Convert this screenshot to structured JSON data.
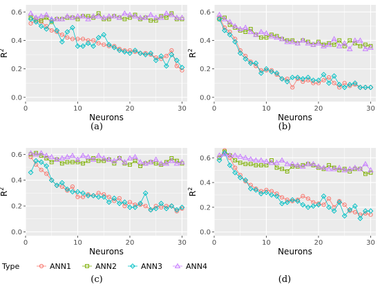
{
  "chart_data": [
    {
      "panel": "(a)",
      "type": "line",
      "xlabel": "Neurons",
      "ylabel": "R",
      "ylabel_superscript": "2",
      "xlim": [
        0,
        31
      ],
      "ylim": [
        -0.03,
        0.65
      ],
      "xticks": [
        0,
        10,
        20,
        30
      ],
      "yticks": [
        0.0,
        0.2,
        0.4,
        0.6
      ],
      "x": [
        1,
        2,
        3,
        4,
        5,
        6,
        7,
        8,
        9,
        10,
        11,
        12,
        13,
        14,
        15,
        16,
        17,
        18,
        19,
        20,
        21,
        22,
        23,
        24,
        25,
        26,
        27,
        28,
        29,
        30
      ],
      "series": [
        {
          "name": "ANN1",
          "values": [
            0.52,
            0.54,
            0.53,
            0.5,
            0.47,
            0.46,
            0.44,
            0.42,
            0.41,
            0.41,
            0.41,
            0.4,
            0.4,
            0.38,
            0.37,
            0.36,
            0.36,
            0.34,
            0.33,
            0.33,
            0.32,
            0.31,
            0.31,
            0.3,
            0.28,
            0.27,
            0.29,
            0.33,
            0.22,
            0.19
          ]
        },
        {
          "name": "ANN2",
          "values": [
            0.56,
            0.55,
            0.54,
            0.56,
            0.53,
            0.55,
            0.55,
            0.56,
            0.56,
            0.55,
            0.57,
            0.57,
            0.56,
            0.59,
            0.55,
            0.55,
            0.57,
            0.56,
            0.55,
            0.56,
            0.58,
            0.55,
            0.56,
            0.54,
            0.54,
            0.57,
            0.56,
            0.59,
            0.55,
            0.55
          ]
        },
        {
          "name": "ANN3",
          "values": [
            0.55,
            0.53,
            0.5,
            0.48,
            0.54,
            0.47,
            0.39,
            0.46,
            0.49,
            0.36,
            0.36,
            0.38,
            0.36,
            0.42,
            0.44,
            0.37,
            0.35,
            0.33,
            0.32,
            0.31,
            0.33,
            0.31,
            0.3,
            0.31,
            0.26,
            0.29,
            0.22,
            0.3,
            0.26,
            0.21
          ]
        },
        {
          "name": "ANN4",
          "values": [
            0.59,
            0.56,
            0.57,
            0.58,
            0.55,
            0.55,
            0.55,
            0.57,
            0.56,
            0.57,
            0.57,
            0.55,
            0.57,
            0.57,
            0.56,
            0.57,
            0.57,
            0.56,
            0.59,
            0.58,
            0.57,
            0.56,
            0.56,
            0.58,
            0.56,
            0.56,
            0.59,
            0.58,
            0.56,
            0.56
          ]
        }
      ]
    },
    {
      "panel": "(b)",
      "type": "line",
      "xlabel": "Neurons",
      "ylabel": "R",
      "ylabel_superscript": "2",
      "xlim": [
        0,
        31
      ],
      "ylim": [
        -0.03,
        0.65
      ],
      "xticks": [
        0,
        10,
        20,
        30
      ],
      "yticks": [
        0.0,
        0.2,
        0.4,
        0.6
      ],
      "x": [
        1,
        2,
        3,
        4,
        5,
        6,
        7,
        8,
        9,
        10,
        11,
        12,
        13,
        14,
        15,
        16,
        17,
        18,
        19,
        20,
        21,
        22,
        23,
        24,
        25,
        26,
        27,
        28,
        29,
        30
      ],
      "series": [
        {
          "name": "ANN1",
          "values": [
            0.56,
            0.49,
            0.46,
            0.41,
            0.33,
            0.29,
            0.25,
            0.22,
            0.19,
            0.19,
            0.19,
            0.16,
            0.13,
            0.13,
            0.07,
            0.13,
            0.11,
            0.12,
            0.1,
            0.1,
            0.12,
            0.14,
            0.1,
            0.07,
            0.1,
            0.08,
            0.09,
            0.07,
            0.07,
            0.07
          ]
        },
        {
          "name": "ANN2",
          "values": [
            0.55,
            0.56,
            0.51,
            0.49,
            0.47,
            0.46,
            0.48,
            0.44,
            0.42,
            0.42,
            0.44,
            0.43,
            0.41,
            0.4,
            0.4,
            0.38,
            0.4,
            0.39,
            0.37,
            0.39,
            0.37,
            0.38,
            0.37,
            0.4,
            0.36,
            0.4,
            0.38,
            0.36,
            0.37,
            0.36
          ]
        },
        {
          "name": "ANN3",
          "values": [
            0.55,
            0.47,
            0.44,
            0.39,
            0.31,
            0.27,
            0.24,
            0.24,
            0.17,
            0.2,
            0.18,
            0.17,
            0.13,
            0.11,
            0.14,
            0.14,
            0.13,
            0.14,
            0.12,
            0.12,
            0.16,
            0.1,
            0.15,
            0.09,
            0.07,
            0.09,
            0.1,
            0.07,
            0.07,
            0.07
          ]
        },
        {
          "name": "ANN4",
          "values": [
            0.58,
            0.55,
            0.53,
            0.5,
            0.48,
            0.49,
            0.46,
            0.44,
            0.46,
            0.45,
            0.43,
            0.42,
            0.41,
            0.39,
            0.39,
            0.38,
            0.4,
            0.38,
            0.37,
            0.38,
            0.36,
            0.37,
            0.41,
            0.36,
            0.38,
            0.34,
            0.4,
            0.4,
            0.34,
            0.35
          ]
        }
      ]
    },
    {
      "panel": "(c)",
      "type": "line",
      "xlabel": "Neurons",
      "ylabel": "R",
      "ylabel_superscript": "2",
      "xlim": [
        0,
        31
      ],
      "ylim": [
        -0.03,
        0.65
      ],
      "xticks": [
        0,
        10,
        20,
        30
      ],
      "yticks": [
        0.0,
        0.2,
        0.4,
        0.6
      ],
      "x": [
        1,
        2,
        3,
        4,
        5,
        6,
        7,
        8,
        9,
        10,
        11,
        12,
        13,
        14,
        15,
        16,
        17,
        18,
        19,
        20,
        21,
        22,
        23,
        24,
        25,
        26,
        27,
        28,
        29,
        30
      ],
      "series": [
        {
          "name": "ANN1",
          "values": [
            0.58,
            0.52,
            0.48,
            0.45,
            0.4,
            0.36,
            0.35,
            0.32,
            0.35,
            0.27,
            0.27,
            0.29,
            0.28,
            0.3,
            0.29,
            0.27,
            0.24,
            0.26,
            0.2,
            0.23,
            0.21,
            0.21,
            0.2,
            0.17,
            0.2,
            0.19,
            0.2,
            0.2,
            0.16,
            0.18
          ]
        },
        {
          "name": "ANN2",
          "values": [
            0.6,
            0.61,
            0.59,
            0.57,
            0.54,
            0.56,
            0.53,
            0.54,
            0.54,
            0.54,
            0.53,
            0.55,
            0.57,
            0.55,
            0.55,
            0.56,
            0.53,
            0.57,
            0.53,
            0.52,
            0.55,
            0.51,
            0.53,
            0.54,
            0.53,
            0.52,
            0.54,
            0.57,
            0.55,
            0.53
          ]
        },
        {
          "name": "ANN3",
          "values": [
            0.46,
            0.55,
            0.54,
            0.51,
            0.4,
            0.36,
            0.38,
            0.33,
            0.31,
            0.31,
            0.3,
            0.28,
            0.28,
            0.27,
            0.27,
            0.23,
            0.26,
            0.22,
            0.23,
            0.19,
            0.19,
            0.22,
            0.3,
            0.17,
            0.18,
            0.22,
            0.18,
            0.2,
            0.17,
            0.19
          ]
        },
        {
          "name": "ANN4",
          "values": [
            0.61,
            0.6,
            0.61,
            0.59,
            0.58,
            0.56,
            0.57,
            0.58,
            0.59,
            0.56,
            0.59,
            0.58,
            0.56,
            0.59,
            0.57,
            0.56,
            0.55,
            0.57,
            0.54,
            0.57,
            0.58,
            0.54,
            0.53,
            0.54,
            0.56,
            0.53,
            0.53,
            0.55,
            0.53,
            0.54
          ]
        }
      ]
    },
    {
      "panel": "(d)",
      "type": "line",
      "xlabel": "Neurons",
      "ylabel": "R",
      "ylabel_superscript": "2",
      "xlim": [
        0,
        31
      ],
      "ylim": [
        -0.03,
        0.68
      ],
      "xticks": [
        0,
        10,
        20,
        30
      ],
      "yticks": [
        0.0,
        0.2,
        0.4,
        0.6
      ],
      "x": [
        1,
        2,
        3,
        4,
        5,
        6,
        7,
        8,
        9,
        10,
        11,
        12,
        13,
        14,
        15,
        16,
        17,
        18,
        19,
        20,
        21,
        22,
        23,
        24,
        25,
        26,
        27,
        28,
        29,
        30
      ],
      "series": [
        {
          "name": "ANN1",
          "values": [
            0.6,
            0.66,
            0.6,
            0.52,
            0.46,
            0.41,
            0.38,
            0.35,
            0.33,
            0.34,
            0.33,
            0.31,
            0.28,
            0.26,
            0.25,
            0.26,
            0.29,
            0.27,
            0.24,
            0.23,
            0.22,
            0.27,
            0.2,
            0.25,
            0.22,
            0.17,
            0.16,
            0.14,
            0.15,
            0.14
          ]
        },
        {
          "name": "ANN2",
          "values": [
            0.6,
            0.65,
            0.62,
            0.58,
            0.56,
            0.55,
            0.55,
            0.54,
            0.54,
            0.54,
            0.58,
            0.52,
            0.51,
            0.49,
            0.53,
            0.53,
            0.54,
            0.55,
            0.54,
            0.52,
            0.51,
            0.54,
            0.52,
            0.5,
            0.51,
            0.49,
            0.51,
            0.51,
            0.47,
            0.48
          ]
        },
        {
          "name": "ANN3",
          "values": [
            0.58,
            0.64,
            0.54,
            0.48,
            0.44,
            0.42,
            0.35,
            0.34,
            0.31,
            0.32,
            0.3,
            0.29,
            0.23,
            0.24,
            0.26,
            0.25,
            0.22,
            0.2,
            0.21,
            0.22,
            0.29,
            0.2,
            0.17,
            0.24,
            0.13,
            0.18,
            0.21,
            0.11,
            0.17,
            0.17
          ]
        },
        {
          "name": "ANN4",
          "values": [
            0.62,
            0.63,
            0.62,
            0.62,
            0.61,
            0.6,
            0.59,
            0.58,
            0.58,
            0.57,
            0.56,
            0.56,
            0.58,
            0.55,
            0.55,
            0.54,
            0.53,
            0.55,
            0.55,
            0.53,
            0.52,
            0.51,
            0.51,
            0.52,
            0.5,
            0.51,
            0.52,
            0.51,
            0.55,
            0.5
          ]
        }
      ]
    }
  ],
  "legend": {
    "title": "Type",
    "placement": "bottom-left",
    "entries": [
      {
        "name": "ANN1",
        "color": "#F8766D",
        "marker": "circle"
      },
      {
        "name": "ANN2",
        "color": "#7CAE00",
        "marker": "square"
      },
      {
        "name": "ANN3",
        "color": "#00BFC4",
        "marker": "diamond"
      },
      {
        "name": "ANN4",
        "color": "#C77CFF",
        "marker": "triangle"
      }
    ]
  },
  "style": {
    "panel_background": "#EBEBEB",
    "grid_color": "#FFFFFF"
  }
}
